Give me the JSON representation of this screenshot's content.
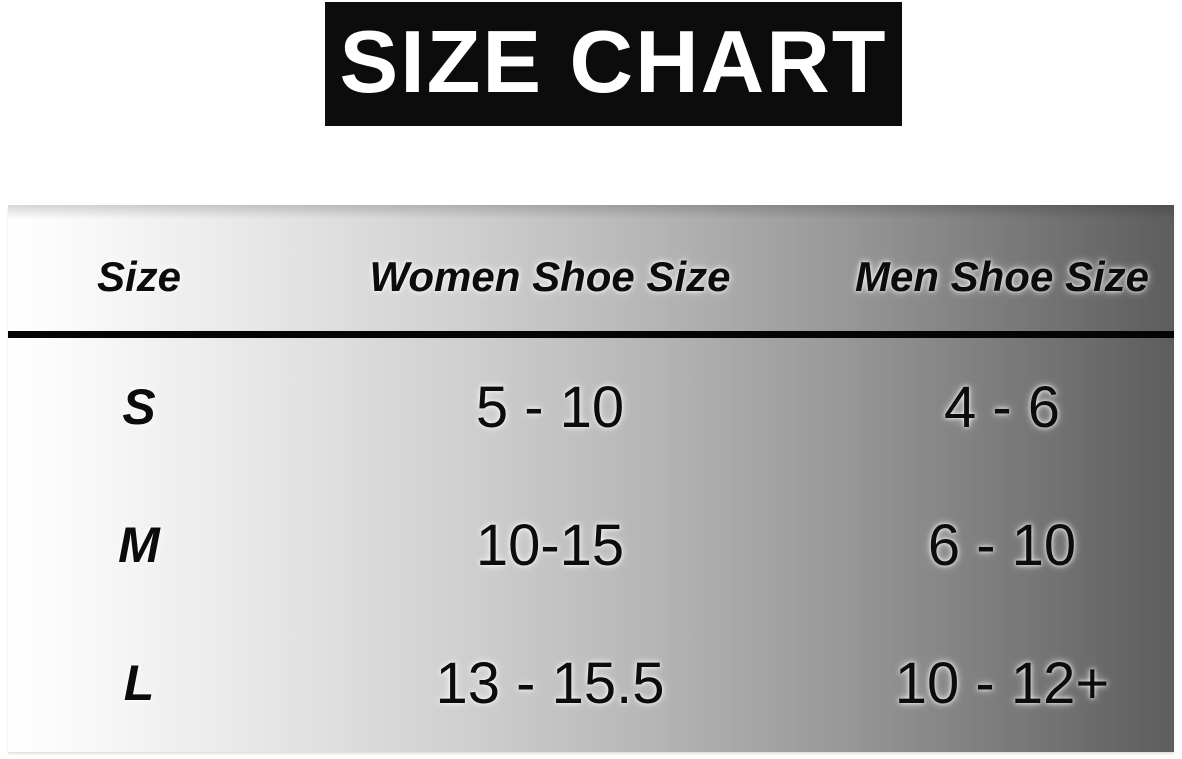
{
  "header": {
    "title": "SIZE CHART"
  },
  "colors": {
    "banner_bg": "#0d0c0c",
    "banner_text": "#ffffff",
    "table_text": "#0c0c0c",
    "divider": "#050505",
    "gradient_left": "#ffffff",
    "gradient_right": "#5d5d5d"
  },
  "chart_data": {
    "type": "table",
    "title": "SIZE CHART",
    "columns": [
      "Size",
      "Women Shoe Size",
      "Men Shoe Size"
    ],
    "rows": [
      {
        "size": "S",
        "women_shoe_size": "5 - 10",
        "men_shoe_size": "4 - 6"
      },
      {
        "size": "M",
        "women_shoe_size": "10-15",
        "men_shoe_size": "6 - 10"
      },
      {
        "size": "L",
        "women_shoe_size": "13 - 15.5",
        "men_shoe_size": "10 - 12+"
      }
    ]
  }
}
